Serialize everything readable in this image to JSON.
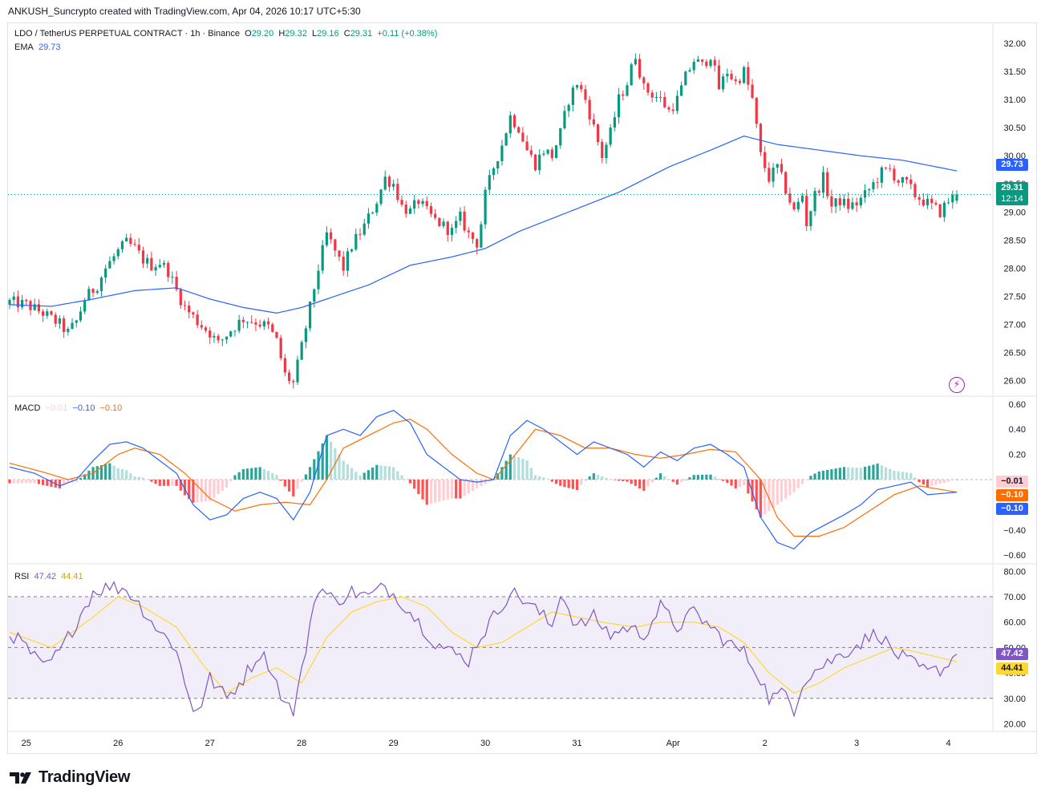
{
  "header": {
    "publisher": "ANKUSH_Suncrypto created with TradingView.com, Apr 04, 2026 10:17 UTC+5:30"
  },
  "legend": {
    "symbol": "LDO / TetherUS PERPETUAL CONTRACT · 1h · Binance",
    "o_label": "O",
    "o": "29.20",
    "h_label": "H",
    "h": "29.32",
    "l_label": "L",
    "l": "29.16",
    "c_label": "C",
    "c": "29.31",
    "change": "+0.11 (+0.38%)",
    "ema_label": "EMA",
    "ema": "29.73",
    "macd_label": "MACD",
    "macd_hist": "−0.01",
    "macd_line": "−0.10",
    "macd_signal": "−0.10",
    "rsi_label": "RSI",
    "rsi": "47.42",
    "rsi_ma": "44.41"
  },
  "badges": {
    "ema": "29.73",
    "price": "29.31",
    "countdown": "12:14",
    "macd_hist": "−0.01",
    "macd_signal": "−0.10",
    "macd_line": "−0.10",
    "rsi": "47.42",
    "rsi_ma": "44.41"
  },
  "colors": {
    "up": "#089981",
    "down": "#f23645",
    "ema": "#2962ff",
    "macd_line": "#2962ff",
    "macd_signal": "#ff6d00",
    "hist_up_strong": "#26a69a",
    "hist_up_weak": "#b2dfdb",
    "hist_down_strong": "#ff5252",
    "hist_down_weak": "#ffcdd2",
    "rsi": "#7e57c2",
    "rsi_ma": "#fdd835",
    "rsi_band": "#7e57c2"
  },
  "brand": {
    "name": "TradingView"
  },
  "chart_data": [
    {
      "type": "candlestick",
      "name": "LDO / TetherUS PERPETUAL CONTRACT",
      "interval": "1h",
      "exchange": "Binance",
      "price_axis": {
        "ticks": [
          "32.00",
          "31.50",
          "31.00",
          "30.50",
          "30.00",
          "29.50",
          "29.00",
          "28.50",
          "28.00",
          "27.50",
          "27.00",
          "26.50",
          "26.00"
        ],
        "range": [
          25.75,
          32.3
        ]
      },
      "time_axis": {
        "ticks": [
          "25",
          "26",
          "27",
          "28",
          "29",
          "30",
          "31",
          "Apr",
          "2",
          "3",
          "4"
        ]
      },
      "last_price": 29.31,
      "ema_last": 29.73,
      "close_path": [
        [
          0,
          27.4
        ],
        [
          4,
          27.35
        ],
        [
          8,
          27.2
        ],
        [
          12,
          27.0
        ],
        [
          14,
          26.85
        ],
        [
          16,
          27.05
        ],
        [
          18,
          27.45
        ],
        [
          21,
          27.7
        ],
        [
          23,
          28.0
        ],
        [
          26,
          28.3
        ],
        [
          28,
          28.45
        ],
        [
          30,
          28.35
        ],
        [
          32,
          28.15
        ],
        [
          34,
          28.05
        ],
        [
          36,
          28.1
        ],
        [
          38,
          27.95
        ],
        [
          40,
          27.6
        ],
        [
          42,
          27.3
        ],
        [
          45,
          27.05
        ],
        [
          48,
          26.85
        ],
        [
          50,
          26.65
        ],
        [
          53,
          26.9
        ],
        [
          56,
          27.1
        ],
        [
          59,
          27.05
        ],
        [
          62,
          26.95
        ],
        [
          64,
          26.7
        ],
        [
          66,
          26.1
        ],
        [
          68,
          25.95
        ],
        [
          70,
          26.6
        ],
        [
          72,
          27.3
        ],
        [
          74,
          28.0
        ],
        [
          76,
          28.6
        ],
        [
          78,
          28.3
        ],
        [
          80,
          28.0
        ],
        [
          82,
          28.4
        ],
        [
          85,
          28.75
        ],
        [
          88,
          29.2
        ],
        [
          90,
          29.6
        ],
        [
          92,
          29.5
        ],
        [
          94,
          29.1
        ],
        [
          96,
          29.0
        ],
        [
          98,
          29.2
        ],
        [
          100,
          29.0
        ],
        [
          102,
          28.85
        ],
        [
          104,
          28.75
        ],
        [
          106,
          28.65
        ],
        [
          108,
          28.9
        ],
        [
          110,
          28.6
        ],
        [
          112,
          28.45
        ],
        [
          113,
          28.8
        ],
        [
          114,
          29.3
        ],
        [
          116,
          29.8
        ],
        [
          118,
          30.2
        ],
        [
          120,
          30.7
        ],
        [
          122,
          30.5
        ],
        [
          124,
          30.1
        ],
        [
          126,
          29.85
        ],
        [
          128,
          30.1
        ],
        [
          130,
          30.0
        ],
        [
          132,
          30.4
        ],
        [
          134,
          31.0
        ],
        [
          136,
          31.3
        ],
        [
          138,
          31.0
        ],
        [
          140,
          30.5
        ],
        [
          142,
          30.0
        ],
        [
          144,
          30.4
        ],
        [
          146,
          31.0
        ],
        [
          148,
          31.3
        ],
        [
          150,
          31.8
        ],
        [
          152,
          31.2
        ],
        [
          154,
          31.1
        ],
        [
          156,
          31.0
        ],
        [
          158,
          30.8
        ],
        [
          160,
          31.0
        ],
        [
          162,
          31.4
        ],
        [
          164,
          31.7
        ],
        [
          166,
          31.6
        ],
        [
          168,
          31.8
        ],
        [
          170,
          31.2
        ],
        [
          172,
          31.5
        ],
        [
          174,
          31.3
        ],
        [
          176,
          31.5
        ],
        [
          178,
          31.0
        ],
        [
          180,
          30.0
        ],
        [
          182,
          29.6
        ],
        [
          184,
          29.8
        ],
        [
          186,
          29.4
        ],
        [
          188,
          29.0
        ],
        [
          190,
          29.3
        ],
        [
          191,
          28.8
        ],
        [
          193,
          29.3
        ],
        [
          195,
          29.6
        ],
        [
          197,
          29.1
        ],
        [
          199,
          29.2
        ],
        [
          201,
          29.1
        ],
        [
          203,
          29.15
        ],
        [
          205,
          29.3
        ],
        [
          207,
          29.5
        ],
        [
          209,
          29.7
        ],
        [
          211,
          29.75
        ],
        [
          213,
          29.55
        ],
        [
          215,
          29.5
        ],
        [
          217,
          29.3
        ],
        [
          219,
          29.2
        ],
        [
          221,
          29.1
        ],
        [
          223,
          29.0
        ],
        [
          225,
          29.2
        ],
        [
          227,
          29.31
        ]
      ],
      "ema_path": [
        [
          0,
          27.35
        ],
        [
          10,
          27.32
        ],
        [
          20,
          27.45
        ],
        [
          30,
          27.6
        ],
        [
          40,
          27.65
        ],
        [
          48,
          27.45
        ],
        [
          56,
          27.3
        ],
        [
          64,
          27.2
        ],
        [
          70,
          27.3
        ],
        [
          78,
          27.5
        ],
        [
          86,
          27.7
        ],
        [
          96,
          28.05
        ],
        [
          106,
          28.2
        ],
        [
          114,
          28.35
        ],
        [
          122,
          28.65
        ],
        [
          134,
          29.0
        ],
        [
          146,
          29.35
        ],
        [
          158,
          29.8
        ],
        [
          168,
          30.1
        ],
        [
          176,
          30.35
        ],
        [
          184,
          30.2
        ],
        [
          194,
          30.1
        ],
        [
          204,
          30.0
        ],
        [
          214,
          29.92
        ],
        [
          227,
          29.73
        ]
      ]
    },
    {
      "type": "macd",
      "axis": {
        "ticks": [
          "0.60",
          "0.40",
          "0.20",
          "−0.40",
          "−0.60"
        ],
        "range": [
          -0.65,
          0.65
        ]
      },
      "last": {
        "histogram": -0.01,
        "macd": -0.1,
        "signal": -0.1
      },
      "macd_path": [
        [
          0,
          0.1
        ],
        [
          6,
          0.05
        ],
        [
          12,
          -0.05
        ],
        [
          16,
          0.0
        ],
        [
          20,
          0.15
        ],
        [
          24,
          0.28
        ],
        [
          28,
          0.3
        ],
        [
          32,
          0.25
        ],
        [
          36,
          0.15
        ],
        [
          40,
          0.05
        ],
        [
          44,
          -0.2
        ],
        [
          48,
          -0.32
        ],
        [
          52,
          -0.28
        ],
        [
          56,
          -0.15
        ],
        [
          60,
          -0.1
        ],
        [
          64,
          -0.15
        ],
        [
          68,
          -0.32
        ],
        [
          72,
          -0.1
        ],
        [
          76,
          0.35
        ],
        [
          80,
          0.4
        ],
        [
          84,
          0.35
        ],
        [
          88,
          0.5
        ],
        [
          92,
          0.55
        ],
        [
          96,
          0.45
        ],
        [
          100,
          0.2
        ],
        [
          104,
          0.1
        ],
        [
          108,
          0.0
        ],
        [
          112,
          -0.02
        ],
        [
          116,
          0.0
        ],
        [
          120,
          0.35
        ],
        [
          124,
          0.47
        ],
        [
          128,
          0.4
        ],
        [
          132,
          0.3
        ],
        [
          136,
          0.2
        ],
        [
          140,
          0.3
        ],
        [
          144,
          0.25
        ],
        [
          148,
          0.2
        ],
        [
          152,
          0.1
        ],
        [
          156,
          0.22
        ],
        [
          160,
          0.15
        ],
        [
          164,
          0.25
        ],
        [
          168,
          0.28
        ],
        [
          172,
          0.2
        ],
        [
          176,
          0.1
        ],
        [
          180,
          -0.3
        ],
        [
          184,
          -0.5
        ],
        [
          188,
          -0.55
        ],
        [
          192,
          -0.42
        ],
        [
          196,
          -0.35
        ],
        [
          200,
          -0.28
        ],
        [
          204,
          -0.2
        ],
        [
          208,
          -0.08
        ],
        [
          212,
          -0.05
        ],
        [
          216,
          -0.02
        ],
        [
          220,
          -0.12
        ],
        [
          227,
          -0.1
        ]
      ],
      "signal_path": [
        [
          0,
          0.13
        ],
        [
          8,
          0.06
        ],
        [
          14,
          0.0
        ],
        [
          20,
          0.05
        ],
        [
          26,
          0.2
        ],
        [
          30,
          0.25
        ],
        [
          36,
          0.2
        ],
        [
          42,
          0.05
        ],
        [
          48,
          -0.15
        ],
        [
          54,
          -0.25
        ],
        [
          60,
          -0.2
        ],
        [
          66,
          -0.18
        ],
        [
          72,
          -0.2
        ],
        [
          76,
          0.0
        ],
        [
          80,
          0.25
        ],
        [
          86,
          0.35
        ],
        [
          92,
          0.45
        ],
        [
          96,
          0.48
        ],
        [
          100,
          0.4
        ],
        [
          106,
          0.2
        ],
        [
          112,
          0.05
        ],
        [
          116,
          0.0
        ],
        [
          120,
          0.15
        ],
        [
          126,
          0.4
        ],
        [
          132,
          0.35
        ],
        [
          138,
          0.25
        ],
        [
          144,
          0.25
        ],
        [
          150,
          0.2
        ],
        [
          156,
          0.17
        ],
        [
          162,
          0.2
        ],
        [
          168,
          0.24
        ],
        [
          174,
          0.22
        ],
        [
          180,
          0.0
        ],
        [
          184,
          -0.3
        ],
        [
          188,
          -0.45
        ],
        [
          194,
          -0.45
        ],
        [
          200,
          -0.38
        ],
        [
          206,
          -0.25
        ],
        [
          212,
          -0.12
        ],
        [
          218,
          -0.05
        ],
        [
          227,
          -0.1
        ]
      ]
    },
    {
      "type": "rsi",
      "axis": {
        "ticks": [
          "80.00",
          "70.00",
          "60.00",
          "50.00",
          "40.00",
          "30.00",
          "20.00"
        ],
        "range": [
          17,
          82
        ]
      },
      "bands": {
        "upper": 70,
        "middle": 50,
        "lower": 30
      },
      "last": {
        "rsi": 47.42,
        "ma": 44.41
      },
      "rsi_path": [
        [
          0,
          56
        ],
        [
          4,
          50
        ],
        [
          8,
          42
        ],
        [
          12,
          48
        ],
        [
          16,
          60
        ],
        [
          20,
          72
        ],
        [
          24,
          74
        ],
        [
          28,
          73
        ],
        [
          32,
          65
        ],
        [
          36,
          56
        ],
        [
          40,
          50
        ],
        [
          42,
          35
        ],
        [
          44,
          26
        ],
        [
          46,
          28
        ],
        [
          48,
          38
        ],
        [
          52,
          30
        ],
        [
          56,
          38
        ],
        [
          60,
          48
        ],
        [
          62,
          44
        ],
        [
          66,
          28
        ],
        [
          68,
          25
        ],
        [
          70,
          40
        ],
        [
          72,
          60
        ],
        [
          74,
          74
        ],
        [
          78,
          68
        ],
        [
          82,
          72
        ],
        [
          86,
          70
        ],
        [
          90,
          74
        ],
        [
          94,
          68
        ],
        [
          98,
          60
        ],
        [
          102,
          52
        ],
        [
          106,
          48
        ],
        [
          110,
          45
        ],
        [
          112,
          52
        ],
        [
          116,
          62
        ],
        [
          120,
          72
        ],
        [
          124,
          68
        ],
        [
          128,
          62
        ],
        [
          130,
          58
        ],
        [
          132,
          72
        ],
        [
          136,
          58
        ],
        [
          140,
          62
        ],
        [
          144,
          55
        ],
        [
          148,
          58
        ],
        [
          152,
          55
        ],
        [
          156,
          66
        ],
        [
          160,
          58
        ],
        [
          164,
          64
        ],
        [
          168,
          58
        ],
        [
          172,
          52
        ],
        [
          176,
          48
        ],
        [
          180,
          38
        ],
        [
          182,
          30
        ],
        [
          186,
          32
        ],
        [
          188,
          26
        ],
        [
          190,
          36
        ],
        [
          192,
          40
        ],
        [
          196,
          44
        ],
        [
          200,
          48
        ],
        [
          204,
          52
        ],
        [
          208,
          56
        ],
        [
          212,
          48
        ],
        [
          216,
          44
        ],
        [
          220,
          40
        ],
        [
          224,
          42
        ],
        [
          227,
          47.42
        ]
      ],
      "ma_path": [
        [
          0,
          56
        ],
        [
          10,
          50
        ],
        [
          20,
          62
        ],
        [
          26,
          70
        ],
        [
          32,
          66
        ],
        [
          40,
          58
        ],
        [
          46,
          44
        ],
        [
          52,
          32
        ],
        [
          58,
          38
        ],
        [
          64,
          42
        ],
        [
          70,
          36
        ],
        [
          76,
          54
        ],
        [
          82,
          64
        ],
        [
          88,
          68
        ],
        [
          94,
          70
        ],
        [
          100,
          66
        ],
        [
          106,
          56
        ],
        [
          112,
          50
        ],
        [
          118,
          52
        ],
        [
          124,
          58
        ],
        [
          130,
          64
        ],
        [
          136,
          62
        ],
        [
          142,
          60
        ],
        [
          150,
          58
        ],
        [
          156,
          60
        ],
        [
          164,
          60
        ],
        [
          170,
          58
        ],
        [
          176,
          52
        ],
        [
          182,
          40
        ],
        [
          188,
          32
        ],
        [
          194,
          36
        ],
        [
          200,
          42
        ],
        [
          206,
          46
        ],
        [
          212,
          50
        ],
        [
          218,
          48
        ],
        [
          227,
          44.41
        ]
      ]
    }
  ]
}
